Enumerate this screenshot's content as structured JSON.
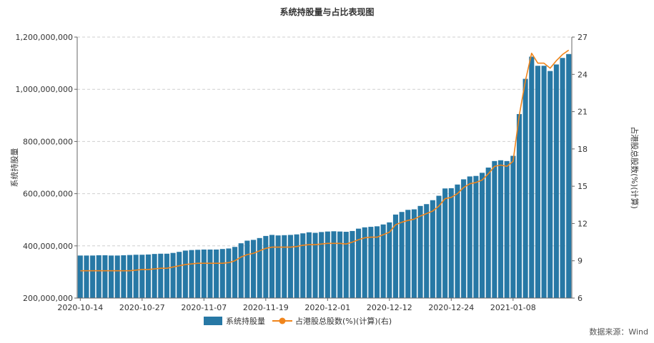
{
  "chart_data": {
    "type": "bar",
    "title": "系统持股量与占比表现图",
    "ylabel": "系统持股量",
    "y2label": "占港股总股数(%)(计算)",
    "source": "数据来源：Wind",
    "ylim": [
      200000000,
      1200000000
    ],
    "y2lim": [
      6,
      27
    ],
    "yticks": [
      "200,000,000",
      "400,000,000",
      "600,000,000",
      "800,000,000",
      "1,000,000,000",
      "1,200,000,000"
    ],
    "y2ticks": [
      "6",
      "9",
      "12",
      "15",
      "18",
      "21",
      "24",
      "27"
    ],
    "xticks": [
      {
        "index": 0,
        "label": "2020-10-14"
      },
      {
        "index": 10,
        "label": "2020-10-27"
      },
      {
        "index": 20,
        "label": "2020-11-07"
      },
      {
        "index": 30,
        "label": "2020-11-19"
      },
      {
        "index": 40,
        "label": "2020-12-01"
      },
      {
        "index": 50,
        "label": "2020-12-12"
      },
      {
        "index": 60,
        "label": "2020-12-24"
      },
      {
        "index": 70,
        "label": "2021-01-08"
      }
    ],
    "legend_position": "bottom-center",
    "grid": true,
    "colors": {
      "bar": "#2778a5",
      "line": "#f0851c"
    },
    "series": [
      {
        "name": "系统持股量",
        "type": "bar",
        "axis": "left",
        "values": [
          363000000,
          363000000,
          363000000,
          364000000,
          364000000,
          363000000,
          363000000,
          364000000,
          365000000,
          366000000,
          366000000,
          367000000,
          369000000,
          370000000,
          370000000,
          373000000,
          377000000,
          382000000,
          384000000,
          385000000,
          386000000,
          386000000,
          386000000,
          388000000,
          390000000,
          396000000,
          410000000,
          420000000,
          423000000,
          430000000,
          438000000,
          442000000,
          440000000,
          441000000,
          442000000,
          444000000,
          448000000,
          452000000,
          450000000,
          453000000,
          455000000,
          456000000,
          455000000,
          454000000,
          457000000,
          466000000,
          471000000,
          473000000,
          475000000,
          482000000,
          490000000,
          520000000,
          530000000,
          538000000,
          540000000,
          553000000,
          560000000,
          575000000,
          592000000,
          620000000,
          621000000,
          635000000,
          655000000,
          666000000,
          668000000,
          680000000,
          700000000,
          725000000,
          728000000,
          725000000,
          745000000,
          905000000,
          1040000000,
          1125000000,
          1090000000,
          1090000000,
          1070000000,
          1095000000,
          1120000000,
          1135000000
        ]
      },
      {
        "name": "占港股总股数(%)(计算)(右)",
        "type": "line",
        "axis": "right",
        "values": [
          8.2,
          8.2,
          8.2,
          8.2,
          8.2,
          8.2,
          8.2,
          8.2,
          8.2,
          8.25,
          8.3,
          8.3,
          8.35,
          8.4,
          8.4,
          8.5,
          8.6,
          8.7,
          8.75,
          8.8,
          8.8,
          8.8,
          8.8,
          8.8,
          8.85,
          9.0,
          9.3,
          9.5,
          9.6,
          9.8,
          10.0,
          10.1,
          10.1,
          10.1,
          10.1,
          10.15,
          10.25,
          10.3,
          10.3,
          10.35,
          10.4,
          10.4,
          10.4,
          10.35,
          10.5,
          10.7,
          10.85,
          10.9,
          10.9,
          11.1,
          11.3,
          11.9,
          12.1,
          12.25,
          12.35,
          12.6,
          12.8,
          13.0,
          13.4,
          14.0,
          14.1,
          14.4,
          14.9,
          15.2,
          15.3,
          15.5,
          16.0,
          16.6,
          16.7,
          16.6,
          17.0,
          20.7,
          23.5,
          25.7,
          24.9,
          24.9,
          24.5,
          25.1,
          25.6,
          25.95
        ]
      }
    ]
  }
}
